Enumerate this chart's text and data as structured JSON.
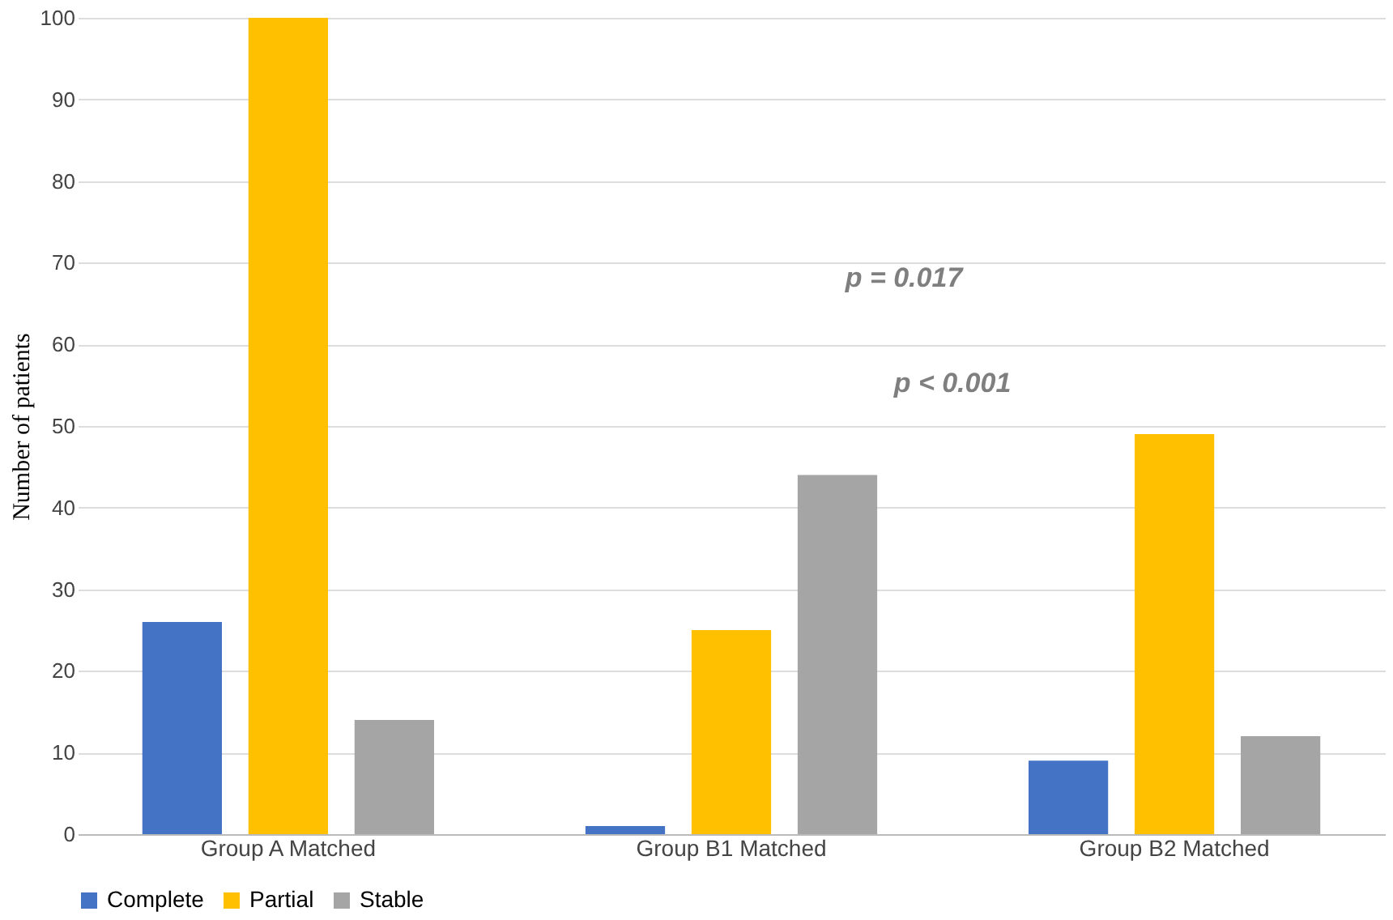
{
  "chart_data": {
    "type": "bar",
    "ylabel": "Number of patients",
    "categories": [
      "Group A Matched",
      "Group B1 Matched",
      "Group B2 Matched"
    ],
    "series": [
      {
        "name": "Complete",
        "color": "#4472c4",
        "values": [
          26,
          1,
          9
        ]
      },
      {
        "name": "Partial",
        "color": "#ffc000",
        "values": [
          100,
          25,
          49
        ]
      },
      {
        "name": "Stable",
        "color": "#a5a5a5",
        "values": [
          14,
          44,
          12
        ]
      }
    ],
    "ylim": [
      0,
      100
    ],
    "yticks": [
      0,
      10,
      20,
      30,
      40,
      50,
      60,
      70,
      80,
      90,
      100
    ],
    "grid": "y",
    "legend": "bottom",
    "annotations": [
      "p = 0.017",
      "p < 0.001"
    ]
  }
}
